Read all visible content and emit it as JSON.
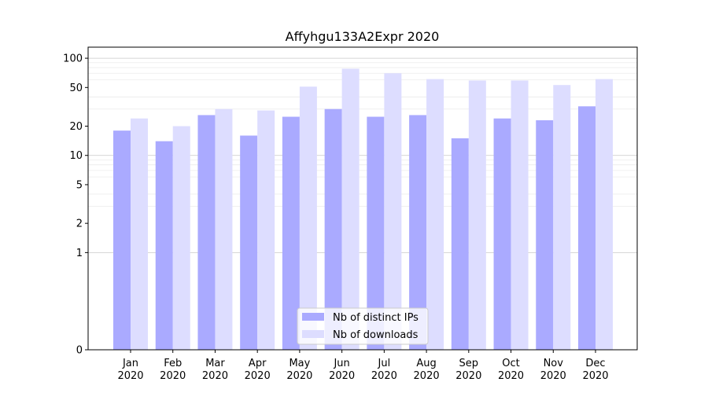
{
  "chart_data": {
    "type": "bar",
    "title": "Affyhgu133A2Expr 2020",
    "xlabel": "",
    "ylabel": "",
    "y_scale": "symlog",
    "ylim": [
      0,
      130
    ],
    "yticks": [
      0,
      1,
      2,
      5,
      10,
      20,
      50,
      100
    ],
    "ytick_labels": [
      "0",
      "1",
      "2",
      "5",
      "10",
      "20",
      "50",
      "100"
    ],
    "grid": true,
    "legend_position": "bottom-center",
    "categories": [
      "Jan\n2020",
      "Feb\n2020",
      "Mar\n2020",
      "Apr\n2020",
      "May\n2020",
      "Jun\n2020",
      "Jul\n2020",
      "Aug\n2020",
      "Sep\n2020",
      "Oct\n2020",
      "Nov\n2020",
      "Dec\n2020"
    ],
    "category_lines": [
      [
        "Jan",
        "2020"
      ],
      [
        "Feb",
        "2020"
      ],
      [
        "Mar",
        "2020"
      ],
      [
        "Apr",
        "2020"
      ],
      [
        "May",
        "2020"
      ],
      [
        "Jun",
        "2020"
      ],
      [
        "Jul",
        "2020"
      ],
      [
        "Aug",
        "2020"
      ],
      [
        "Sep",
        "2020"
      ],
      [
        "Oct",
        "2020"
      ],
      [
        "Nov",
        "2020"
      ],
      [
        "Dec",
        "2020"
      ]
    ],
    "series": [
      {
        "name": "Nb of distinct IPs",
        "color": "#aaaaff",
        "values": [
          18,
          14,
          26,
          16,
          25,
          30,
          25,
          26,
          15,
          24,
          23,
          32
        ]
      },
      {
        "name": "Nb of downloads",
        "color": "#ddddff",
        "values": [
          24,
          20,
          30,
          29,
          51,
          78,
          70,
          61,
          59,
          59,
          53,
          61
        ]
      }
    ]
  }
}
